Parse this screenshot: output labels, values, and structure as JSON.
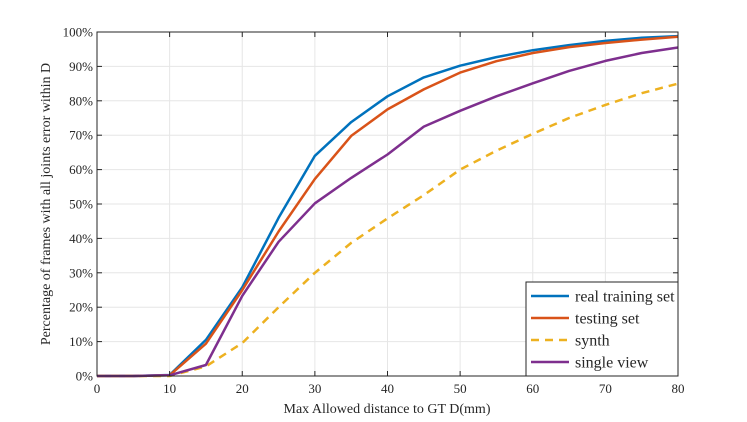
{
  "chart_data": {
    "type": "line",
    "title": "",
    "xlabel": "Max Allowed distance to GT D(mm)",
    "ylabel": "Percentage of frames with all joints error within D",
    "xlim": [
      0,
      80
    ],
    "ylim": [
      0,
      100
    ],
    "grid": true,
    "legend_position": "bottom-right",
    "x_ticks": [
      "0",
      "10",
      "20",
      "30",
      "40",
      "50",
      "60",
      "70",
      "80"
    ],
    "y_ticks": [
      "0%",
      "10%",
      "20%",
      "30%",
      "40%",
      "50%",
      "60%",
      "70%",
      "80%",
      "90%",
      "100%"
    ],
    "x": [
      0,
      5,
      10,
      15,
      20,
      25,
      30,
      35,
      40,
      45,
      50,
      55,
      60,
      65,
      70,
      75,
      80
    ],
    "series": [
      {
        "name": "real training set",
        "color": "#0072bd",
        "style": "solid",
        "values": [
          0,
          0,
          0.3,
          10.5,
          25.8,
          46.0,
          64.0,
          73.8,
          81.3,
          86.8,
          90.2,
          92.7,
          94.7,
          96.2,
          97.4,
          98.3,
          98.8
        ]
      },
      {
        "name": "testing set",
        "color": "#d95319",
        "style": "solid",
        "values": [
          0,
          0,
          0.2,
          9.4,
          25.0,
          42.0,
          57.3,
          69.8,
          77.5,
          83.3,
          88.2,
          91.5,
          93.9,
          95.6,
          96.8,
          97.8,
          98.6
        ]
      },
      {
        "name": "synth",
        "color": "#edb120",
        "style": "dashed",
        "values": [
          0,
          0,
          0,
          2.8,
          9.6,
          20.0,
          30.0,
          38.7,
          45.8,
          52.6,
          60.0,
          65.5,
          70.4,
          75.0,
          78.8,
          82.2,
          85.0
        ]
      },
      {
        "name": "single view",
        "color": "#7e2f8e",
        "style": "solid",
        "values": [
          0,
          0,
          0.2,
          3.2,
          23.3,
          39.0,
          50.2,
          57.6,
          64.4,
          72.5,
          77.1,
          81.3,
          85.1,
          88.7,
          91.6,
          93.9,
          95.5
        ]
      }
    ]
  }
}
